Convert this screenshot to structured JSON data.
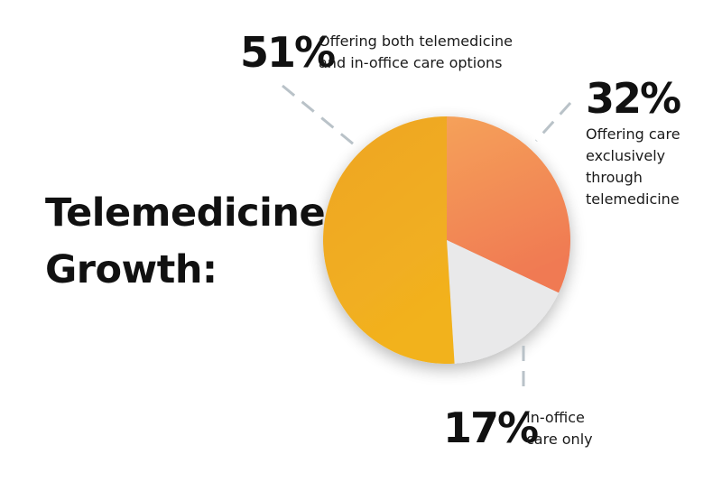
{
  "title_lines": [
    "Telemedicine",
    "Growth:"
  ],
  "colors": {
    "both": "#eea526",
    "both_light": "#f2b21e",
    "tele": "#f07a52",
    "tele_light": "#f5a15a",
    "office": "#e9e9ea",
    "leader": "#b9c2c8"
  },
  "chart_data": {
    "type": "pie",
    "title": "Telemedicine Growth:",
    "slices": [
      {
        "key": "tele",
        "value": 32,
        "label": "32%",
        "desc_lines": [
          "Offering care",
          "exclusively",
          "through",
          "telemedicine"
        ]
      },
      {
        "key": "office",
        "value": 17,
        "label": "17%",
        "desc_lines": [
          "In-office",
          "care only"
        ]
      },
      {
        "key": "both",
        "value": 51,
        "label": "51%",
        "desc_lines": [
          "Offering both telemedicine",
          "and in-office care options"
        ]
      }
    ]
  }
}
